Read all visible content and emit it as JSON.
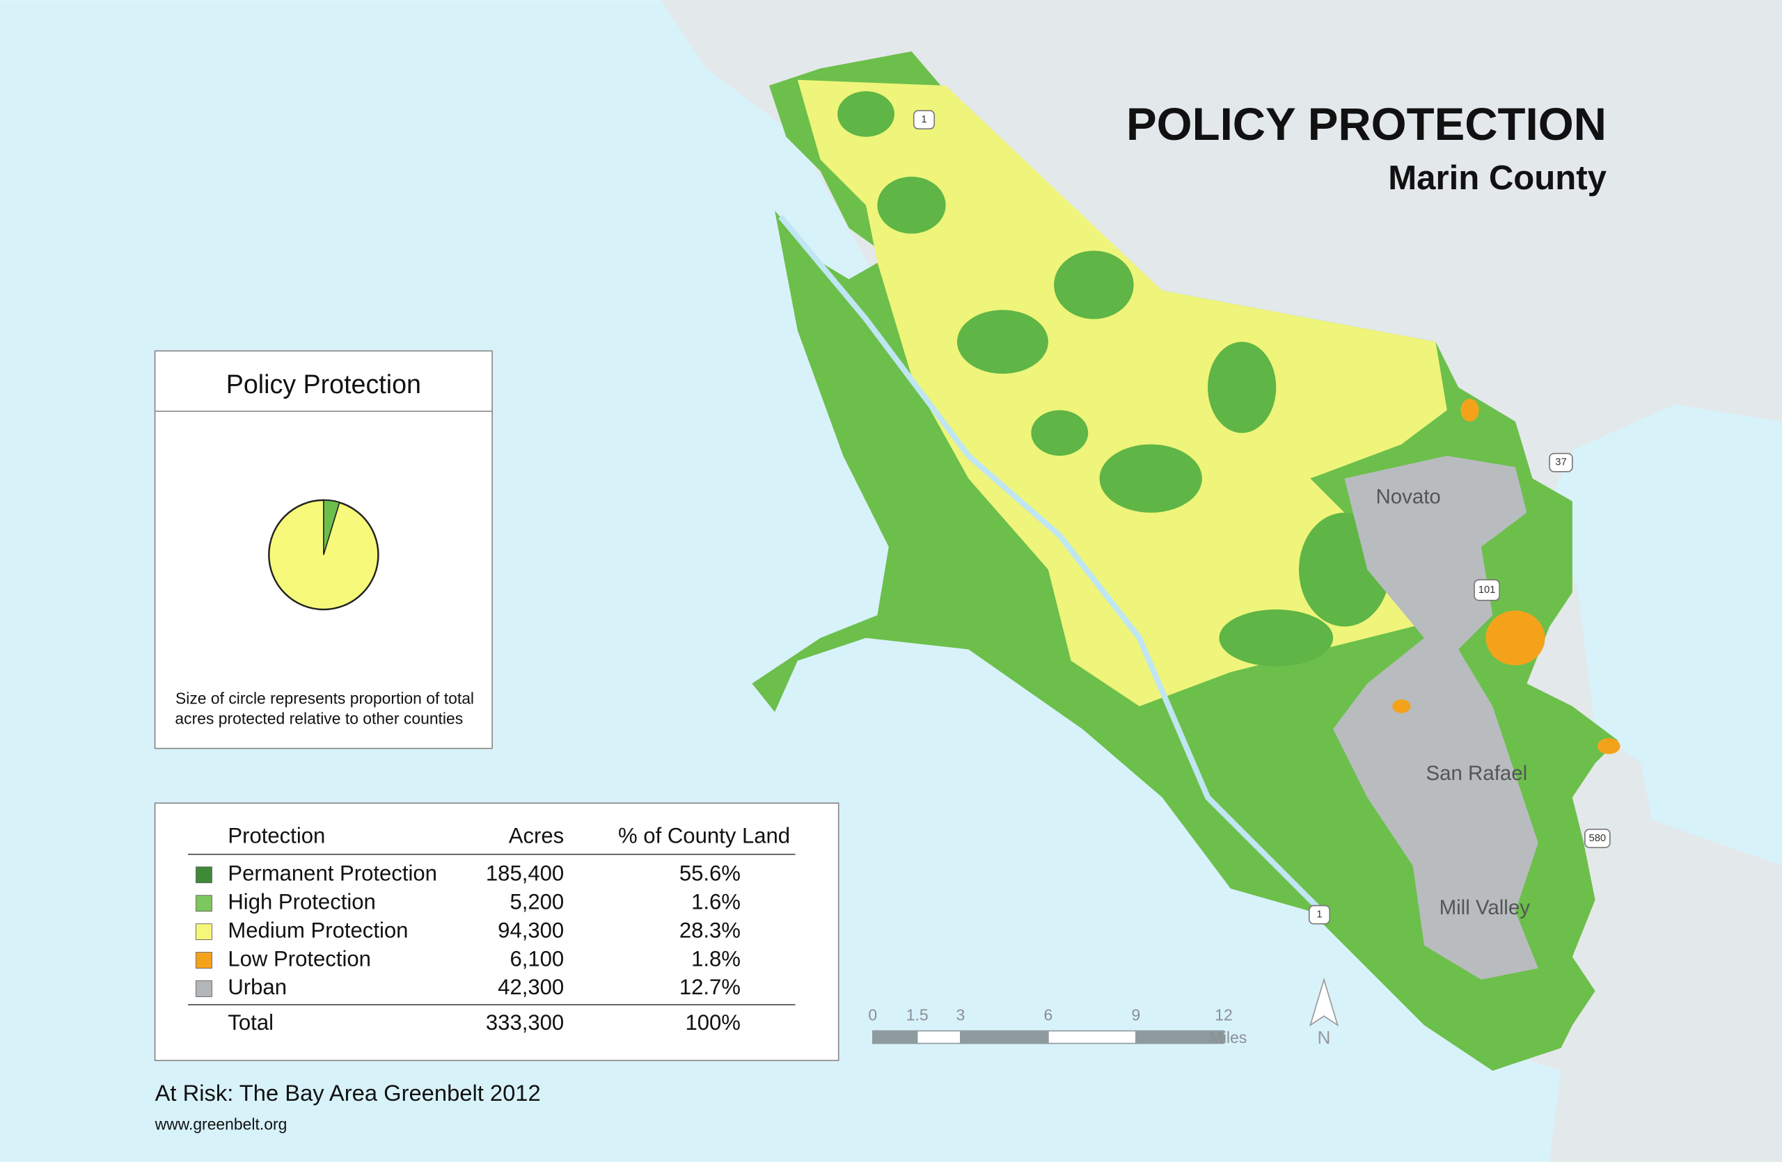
{
  "header": {
    "title": "POLICY PROTECTION",
    "subtitle": "Marin County"
  },
  "inset": {
    "title": "Policy Protection",
    "note": [
      "Size of circle represents proportion of total",
      "acres protected relative to other counties"
    ]
  },
  "table": {
    "columns": [
      "Protection",
      "Acres",
      "% of County Land"
    ],
    "rows": [
      [
        "Permanent Protection",
        "185,400",
        "55.6%"
      ],
      [
        "High Protection",
        "5,200",
        "1.6%"
      ],
      [
        "Medium Protection",
        "94,300",
        "28.3%"
      ],
      [
        "Low Protection",
        "6,100",
        "1.8%"
      ],
      [
        "Urban",
        "42,300",
        "12.7%"
      ]
    ],
    "colors": [
      "#3f8a37",
      "#7cc85e",
      "#f4f77a",
      "#f5a21b",
      "#b3b6b8"
    ],
    "total": [
      "Total",
      "333,300",
      "100%"
    ]
  },
  "scale_bar": {
    "labels": [
      "0",
      "1.5",
      "3",
      "6",
      "9",
      "12"
    ],
    "unit": "Miles"
  },
  "north": "N",
  "places": [
    "Novato",
    "San Rafael",
    "Mill Valley"
  ],
  "road_shields": [
    "1",
    "37",
    "101",
    "580",
    "1"
  ],
  "footer": {
    "credit": "At Risk: The Bay Area Greenbelt 2012",
    "url": "www.greenbelt.org"
  }
}
